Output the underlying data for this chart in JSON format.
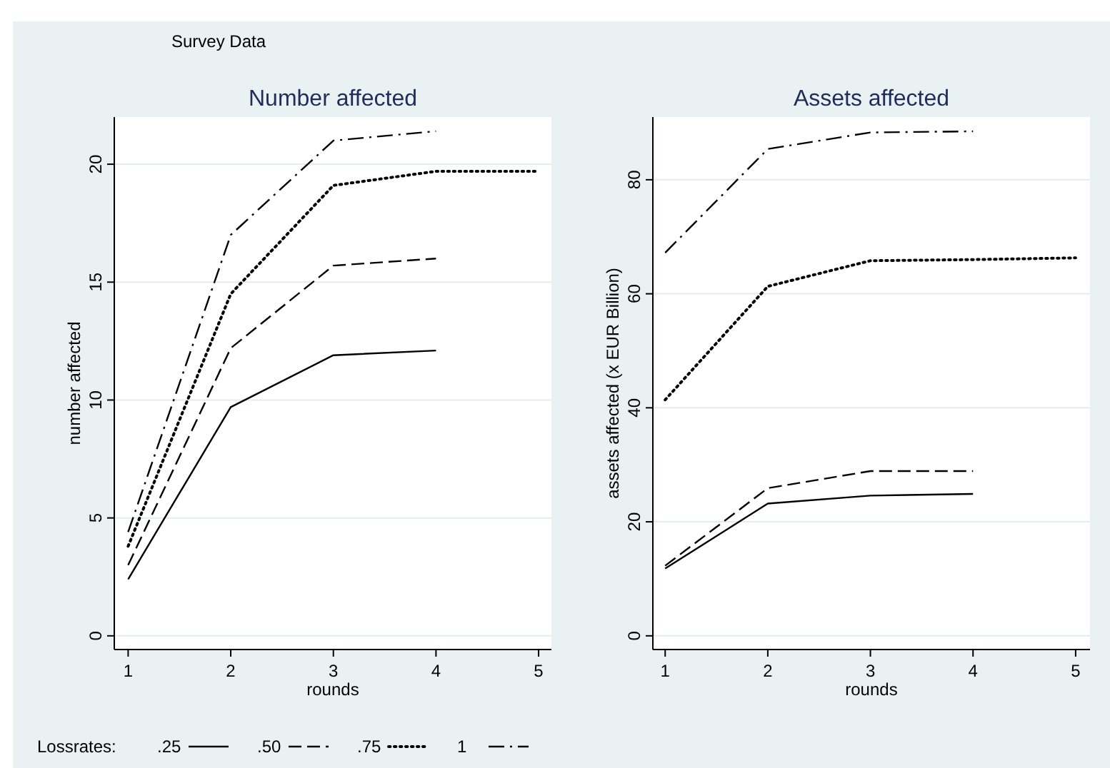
{
  "chart_data": [
    {
      "type": "line",
      "title": "Number affected",
      "xlabel": "rounds",
      "ylabel": "number affected",
      "annotations": [
        "Survey Data"
      ],
      "legend_title": "Lossrates:",
      "legend": "bottom",
      "grid": "y",
      "x": [
        1,
        2,
        3,
        4,
        5
      ],
      "xlim": [
        0.865,
        5.125
      ],
      "xticks": [
        1,
        2,
        3,
        4,
        5
      ],
      "ylim": [
        -0.58,
        22
      ],
      "yticks": [
        0,
        5,
        10,
        15,
        20
      ],
      "series": [
        {
          "name": ".25",
          "color": "#000000",
          "line_style": "solid",
          "values": [
            2.4,
            9.7,
            11.9,
            12.1,
            null
          ]
        },
        {
          "name": ".50",
          "color": "#000000",
          "line_style": "dashed",
          "values": [
            3.0,
            12.2,
            15.7,
            16.0,
            null
          ]
        },
        {
          "name": ".75",
          "color": "#000000",
          "line_style": "dotted",
          "values": [
            3.8,
            14.5,
            19.1,
            19.7,
            19.7
          ]
        },
        {
          "name": "1",
          "color": "#000000",
          "line_style": "dashdot",
          "values": [
            4.4,
            17.0,
            21.0,
            21.4,
            null
          ]
        }
      ]
    },
    {
      "type": "line",
      "title": "Assets affected",
      "xlabel": "rounds",
      "ylabel": "assets affected (x EUR Billion)",
      "grid": "y",
      "x": [
        1,
        2,
        3,
        4,
        5
      ],
      "xlim": [
        0.88,
        5.14
      ],
      "xticks": [
        1,
        2,
        3,
        4,
        5
      ],
      "ylim": [
        -2.4,
        91
      ],
      "yticks": [
        0,
        20,
        40,
        60,
        80
      ],
      "series": [
        {
          "color": "#000000",
          "line_style": "solid",
          "values": [
            11.8,
            23.2,
            24.6,
            24.9,
            null
          ]
        },
        {
          "color": "#000000",
          "line_style": "dashed",
          "values": [
            12.3,
            25.9,
            28.9,
            28.9,
            null
          ]
        },
        {
          "color": "#000000",
          "line_style": "dotted",
          "values": [
            41.4,
            61.3,
            65.8,
            66.0,
            66.3
          ]
        },
        {
          "color": "#000000",
          "line_style": "dashdot",
          "values": [
            67.2,
            85.4,
            88.3,
            88.5,
            null
          ]
        }
      ]
    }
  ]
}
